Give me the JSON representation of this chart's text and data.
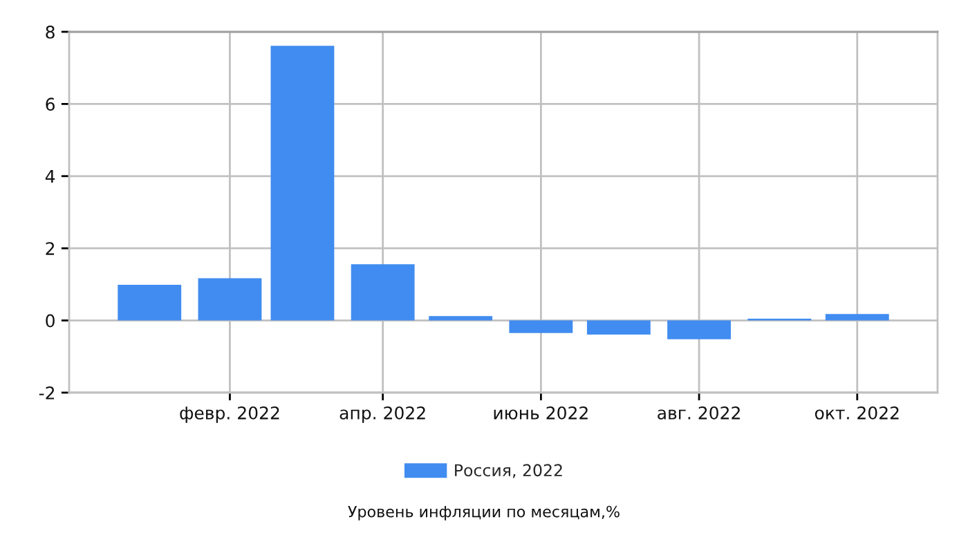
{
  "chart_data": {
    "type": "bar",
    "title": "Уровень инфляции по месяцам,%",
    "x": [
      "2022-01",
      "2022-02",
      "2022-03",
      "2022-04",
      "2022-05",
      "2022-06",
      "2022-07",
      "2022-08",
      "2022-09",
      "2022-10"
    ],
    "series": [
      {
        "name": "Россия, 2022",
        "color": "#418cf0",
        "values": [
          0.99,
          1.17,
          7.61,
          1.56,
          0.12,
          -0.35,
          -0.39,
          -0.52,
          0.05,
          0.18
        ]
      }
    ],
    "xlim": [
      "2021-12",
      "2022-11"
    ],
    "xticks": [
      {
        "value": "2022-02",
        "label": "февр. 2022"
      },
      {
        "value": "2022-04",
        "label": "апр. 2022"
      },
      {
        "value": "2022-06",
        "label": "июнь 2022"
      },
      {
        "value": "2022-08",
        "label": "авг. 2022"
      },
      {
        "value": "2022-10",
        "label": "окт. 2022"
      }
    ],
    "ylim": [
      -2,
      8
    ],
    "yticks": [
      -2,
      0,
      2,
      4,
      6,
      8
    ],
    "grid": true,
    "legend": "bottom"
  }
}
